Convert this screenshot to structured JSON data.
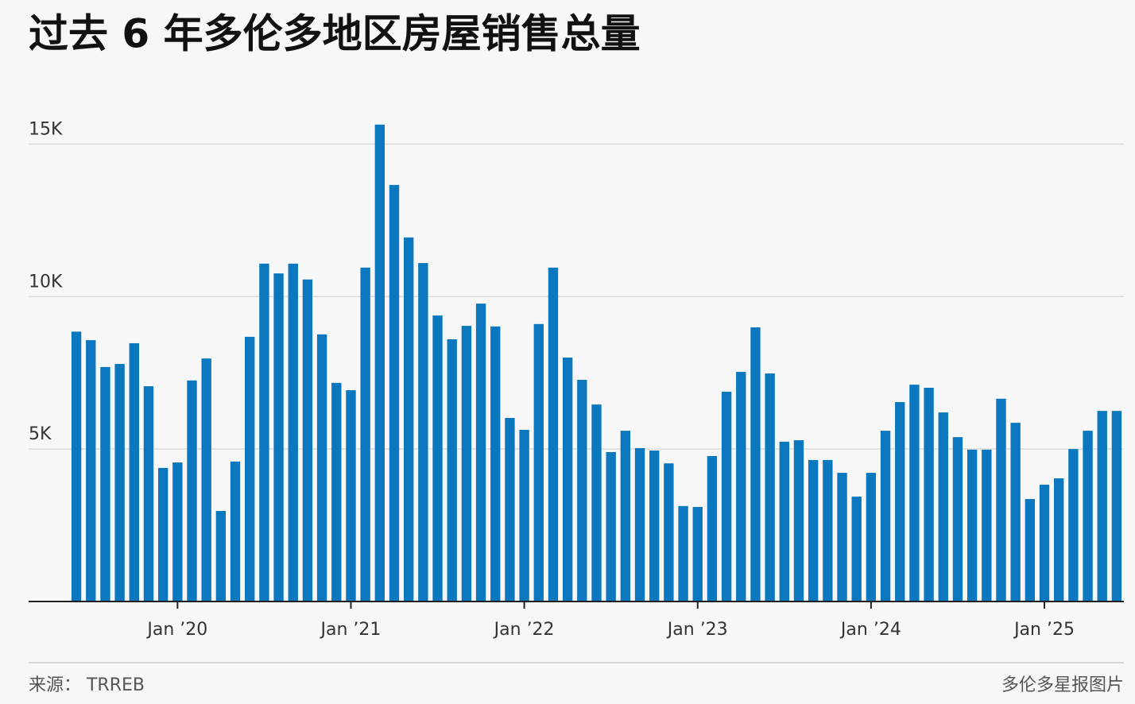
{
  "chart_data": {
    "type": "bar",
    "title": "过去 6 年多伦多地区房屋销售总量",
    "source": "来源：  TRREB",
    "credit": "多伦多星报图片",
    "categories": [
      null,
      null,
      null,
      null,
      null,
      null,
      null,
      "Jan ’20",
      null,
      null,
      null,
      null,
      null,
      null,
      null,
      null,
      null,
      null,
      null,
      "Jan ’21",
      null,
      null,
      null,
      null,
      null,
      null,
      null,
      null,
      null,
      null,
      null,
      "Jan ’22",
      null,
      null,
      null,
      null,
      null,
      null,
      null,
      null,
      null,
      null,
      null,
      "Jan ’23",
      null,
      null,
      null,
      null,
      null,
      null,
      null,
      null,
      null,
      null,
      null,
      "Jan ’24",
      null,
      null,
      null,
      null,
      null,
      null,
      null,
      null,
      null,
      null,
      null,
      "Jan ’25",
      null,
      null,
      null,
      null,
      null
    ],
    "values": [
      8850,
      8570,
      7690,
      7790,
      8470,
      7060,
      4380,
      4560,
      7250,
      7970,
      2970,
      4590,
      8680,
      11080,
      10760,
      11080,
      10560,
      8760,
      7170,
      6930,
      10950,
      15640,
      13660,
      11940,
      11100,
      9380,
      8600,
      9040,
      9770,
      9020,
      6020,
      5630,
      9100,
      10950,
      8000,
      7270,
      6460,
      4900,
      5600,
      5030,
      4950,
      4530,
      3130,
      3100,
      4770,
      6880,
      7530,
      8990,
      7480,
      5240,
      5290,
      4640,
      4640,
      4220,
      3440,
      4220,
      5600,
      6540,
      7110,
      7010,
      6200,
      5390,
      4980,
      4980,
      6650,
      5860,
      3360,
      3830,
      4040,
      5000,
      5600,
      6250,
      6250
    ],
    "color": "#0a77be",
    "ylim": [
      0,
      16000
    ],
    "yticks": [
      {
        "value": 5000,
        "label": "5K"
      },
      {
        "value": 10000,
        "label": "10K"
      },
      {
        "value": 15000,
        "label": "15K"
      }
    ],
    "grid": true
  }
}
